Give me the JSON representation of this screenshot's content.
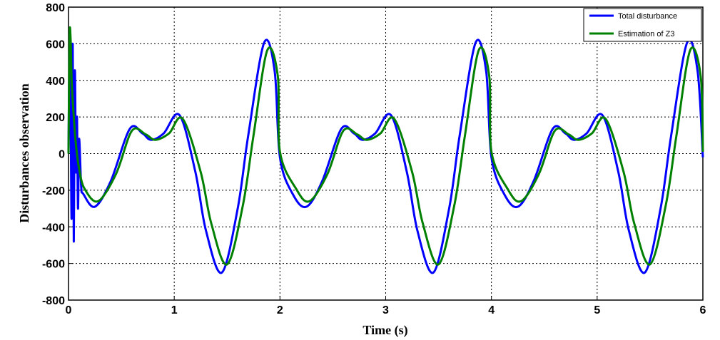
{
  "chart_data": {
    "type": "line",
    "xlabel": "Time (s)",
    "ylabel": "Disturbances observation",
    "xlim": [
      0,
      6
    ],
    "ylim": [
      -800,
      800
    ],
    "x_ticks": [
      "0",
      "1",
      "2",
      "3",
      "4",
      "5",
      "6"
    ],
    "y_ticks": [
      "-800",
      "-600",
      "-400",
      "-200",
      "0",
      "200",
      "400",
      "600",
      "800"
    ],
    "grid": true,
    "legend_position": "top-right",
    "series": [
      {
        "name": "Total disturbance",
        "color": "#0000ff",
        "period_points": [
          [
            0.0,
            -20
          ],
          [
            0.12,
            -220
          ],
          [
            0.25,
            -290
          ],
          [
            0.4,
            -150
          ],
          [
            0.58,
            135
          ],
          [
            0.7,
            110
          ],
          [
            0.78,
            75
          ],
          [
            0.9,
            110
          ],
          [
            1.05,
            210
          ],
          [
            1.2,
            -100
          ],
          [
            1.3,
            -420
          ],
          [
            1.45,
            -650
          ],
          [
            1.6,
            -300
          ],
          [
            1.7,
            100
          ],
          [
            1.85,
            605
          ],
          [
            1.95,
            450
          ],
          [
            2.0,
            -20
          ]
        ]
      },
      {
        "name": "Estimation of Z3",
        "color": "#008000",
        "period_points": [
          [
            0.0,
            10
          ],
          [
            0.15,
            -190
          ],
          [
            0.28,
            -260
          ],
          [
            0.45,
            -110
          ],
          [
            0.6,
            125
          ],
          [
            0.73,
            105
          ],
          [
            0.82,
            75
          ],
          [
            0.95,
            110
          ],
          [
            1.08,
            190
          ],
          [
            1.25,
            -100
          ],
          [
            1.35,
            -380
          ],
          [
            1.5,
            -605
          ],
          [
            1.65,
            -280
          ],
          [
            1.75,
            100
          ],
          [
            1.88,
            565
          ],
          [
            1.98,
            420
          ],
          [
            2.0,
            10
          ]
        ]
      }
    ],
    "period": 2,
    "initial_transient": {
      "Total disturbance": [
        [
          0.0,
          0
        ],
        [
          0.01,
          580
        ],
        [
          0.02,
          200
        ],
        [
          0.03,
          -350
        ],
        [
          0.04,
          600
        ],
        [
          0.05,
          -480
        ],
        [
          0.06,
          450
        ],
        [
          0.07,
          -100
        ],
        [
          0.08,
          200
        ],
        [
          0.09,
          -300
        ],
        [
          0.1,
          80
        ],
        [
          0.12,
          -180
        ],
        [
          0.14,
          -220
        ]
      ],
      "Estimation of Z3": [
        [
          0.0,
          0
        ],
        [
          0.01,
          640
        ],
        [
          0.02,
          620
        ],
        [
          0.03,
          400
        ],
        [
          0.05,
          200
        ],
        [
          0.07,
          50
        ],
        [
          0.1,
          -80
        ],
        [
          0.15,
          -190
        ]
      ]
    }
  }
}
